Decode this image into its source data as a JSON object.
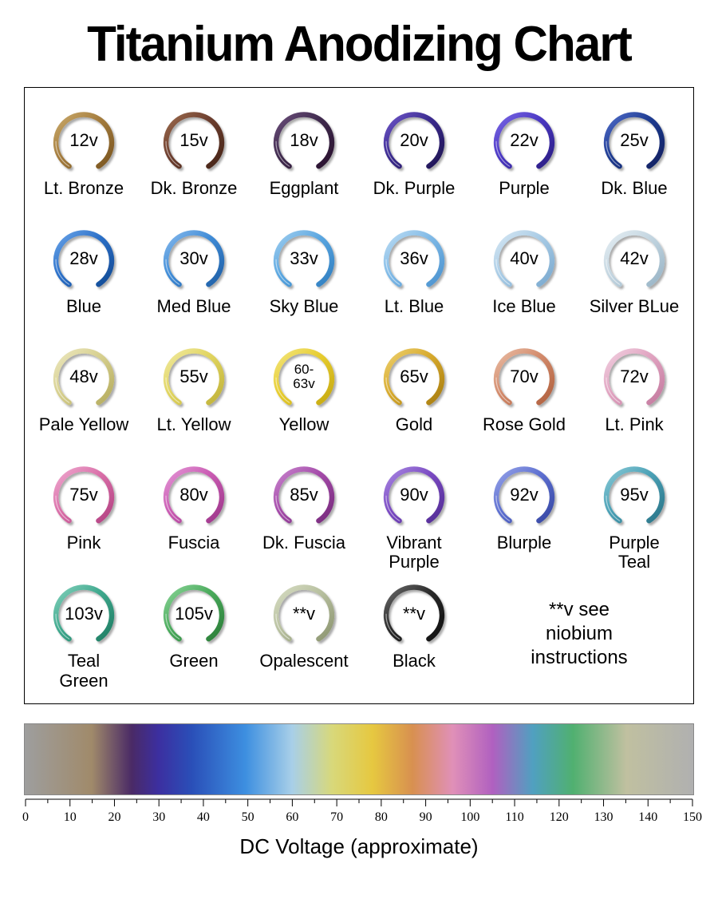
{
  "title": "Titanium Anodizing Chart",
  "ring_stroke_width": 7,
  "ring_shadow_color": "#00000055",
  "volt_fontsize": 22,
  "label_fontsize": 22,
  "rings": [
    {
      "volt": "12v",
      "label": "Lt. Bronze",
      "c1": "#a37b3d",
      "c2": "#c9a96a",
      "c3": "#7a5520"
    },
    {
      "volt": "15v",
      "label": "Dk. Bronze",
      "c1": "#6b3d2e",
      "c2": "#9b6a4d",
      "c3": "#472518"
    },
    {
      "volt": "18v",
      "label": "Eggplant",
      "c1": "#3f2a4d",
      "c2": "#6a4e7a",
      "c3": "#29122e"
    },
    {
      "volt": "20v",
      "label": "Dk. Purple",
      "c1": "#3a2a8d",
      "c2": "#6e56c9",
      "c3": "#1f1552"
    },
    {
      "volt": "22v",
      "label": "Purple",
      "c1": "#4a37c2",
      "c2": "#7a68e5",
      "c3": "#2a1d82"
    },
    {
      "volt": "25v",
      "label": "Dk. Blue",
      "c1": "#1e3a8f",
      "c2": "#4f6cc9",
      "c3": "#0f2060"
    },
    {
      "volt": "28v",
      "label": "Blue",
      "c1": "#2b6fc7",
      "c2": "#6aa4e8",
      "c3": "#134a94"
    },
    {
      "volt": "30v",
      "label": "Med Blue",
      "c1": "#3f8bd6",
      "c2": "#86b9ec",
      "c3": "#1f5fa6"
    },
    {
      "volt": "33v",
      "label": "Sky Blue",
      "c1": "#5aa6e0",
      "c2": "#a0ceef",
      "c3": "#2f7ec0"
    },
    {
      "volt": "36v",
      "label": "Lt. Blue",
      "c1": "#7fb9e6",
      "c2": "#bcdcf3",
      "c3": "#4a92cf"
    },
    {
      "volt": "40v",
      "label": "Ice Blue",
      "c1": "#a8cbe5",
      "c2": "#d6e7f3",
      "c3": "#7aa9cf"
    },
    {
      "volt": "42v",
      "label": "Silver BLue",
      "c1": "#c3d5e0",
      "c2": "#e5eef3",
      "c3": "#98b4c6"
    },
    {
      "volt": "48v",
      "label": "Pale Yellow",
      "c1": "#d6cf8e",
      "c2": "#ece7bf",
      "c3": "#b5ac5e"
    },
    {
      "volt": "55v",
      "label": "Lt. Yellow",
      "c1": "#e0d45f",
      "c2": "#f0e9a0",
      "c3": "#c0b23a"
    },
    {
      "volt": "60-\n63v",
      "label": "Yellow",
      "c1": "#e6cc2f",
      "c2": "#f3e57e",
      "c3": "#c6a912"
    },
    {
      "volt": "65v",
      "label": "Gold",
      "c1": "#d6a92d",
      "c2": "#edd06f",
      "c3": "#a87d10"
    },
    {
      "volt": "70v",
      "label": "Rose Gold",
      "c1": "#d28a6b",
      "c2": "#e9bca4",
      "c3": "#b0603e"
    },
    {
      "volt": "72v",
      "label": "Lt. Pink",
      "c1": "#e0a3c0",
      "c2": "#f1d0e0",
      "c3": "#c47a9f"
    },
    {
      "volt": "75v",
      "label": "Pink",
      "c1": "#d96fa8",
      "c2": "#efa9cf",
      "c3": "#b34282"
    },
    {
      "volt": "80v",
      "label": "Fuscia",
      "c1": "#c95bb2",
      "c2": "#e496d6",
      "c3": "#9d368a"
    },
    {
      "volt": "85v",
      "label": "Dk. Fuscia",
      "c1": "#a34aa8",
      "c2": "#c884cd",
      "c3": "#772a7c"
    },
    {
      "volt": "90v",
      "label": "Vibrant\nPurple",
      "c1": "#7a4ac2",
      "c2": "#a988e2",
      "c3": "#522c94"
    },
    {
      "volt": "92v",
      "label": "Blurple",
      "c1": "#5d6fd0",
      "c2": "#96a3e8",
      "c3": "#3647a3"
    },
    {
      "volt": "95v",
      "label": "Purple\nTeal",
      "c1": "#4aa0b5",
      "c2": "#88c9d6",
      "c3": "#2a7588"
    },
    {
      "volt": "103v",
      "label": "Teal\nGreen",
      "c1": "#3fa88d",
      "c2": "#82d0bb",
      "c3": "#1f7d63"
    },
    {
      "volt": "105v",
      "label": "Green",
      "c1": "#4aaa5c",
      "c2": "#8ad497",
      "c3": "#2a7d38"
    },
    {
      "volt": "**v",
      "label": "Opalescent",
      "c1": "#b8c0a0",
      "c2": "#d6dcc2",
      "c3": "#8c9570"
    },
    {
      "volt": "**v",
      "label": "Black",
      "c1": "#2a2a2a",
      "c2": "#6a6a6a",
      "c3": "#0d0d0d"
    }
  ],
  "note": "**v see\nniobium\ninstructions",
  "spectrum": {
    "stops": [
      {
        "pct": 0,
        "color": "#9e9e9e"
      },
      {
        "pct": 10,
        "color": "#a08a6a"
      },
      {
        "pct": 16,
        "color": "#4a2a66"
      },
      {
        "pct": 20,
        "color": "#3c2fa0"
      },
      {
        "pct": 25,
        "color": "#2a4fb8"
      },
      {
        "pct": 33,
        "color": "#3d8fe0"
      },
      {
        "pct": 40,
        "color": "#a8cfe8"
      },
      {
        "pct": 46,
        "color": "#d8d87a"
      },
      {
        "pct": 52,
        "color": "#e6c840"
      },
      {
        "pct": 58,
        "color": "#d89050"
      },
      {
        "pct": 64,
        "color": "#e090b8"
      },
      {
        "pct": 70,
        "color": "#b060c0"
      },
      {
        "pct": 76,
        "color": "#50a0c0"
      },
      {
        "pct": 82,
        "color": "#50b070"
      },
      {
        "pct": 90,
        "color": "#c0c0a0"
      },
      {
        "pct": 100,
        "color": "#b0b0b0"
      }
    ],
    "ticks": {
      "min": 0,
      "max": 150,
      "step": 10
    },
    "axis_label": "DC Voltage (approximate)"
  }
}
